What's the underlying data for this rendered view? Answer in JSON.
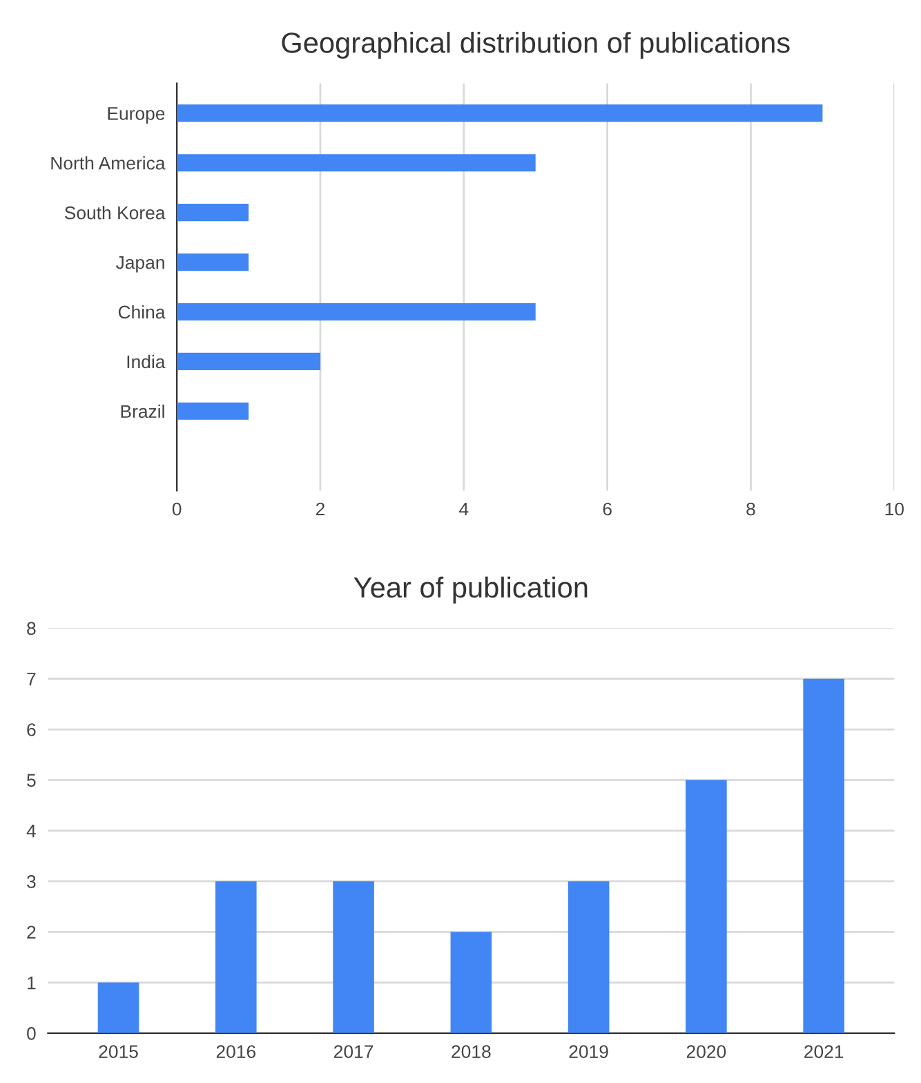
{
  "chart_data": [
    {
      "type": "bar",
      "orientation": "horizontal",
      "title": "Geographical distribution of publications",
      "categories": [
        "Europe",
        "North America",
        "South Korea",
        "Japan",
        "China",
        "India",
        "Brazil"
      ],
      "values": [
        9,
        5,
        1,
        1,
        5,
        2,
        1
      ],
      "color": "#4285f4",
      "xlim": [
        0,
        10
      ],
      "xticks": [
        0,
        2,
        4,
        6,
        8,
        10
      ],
      "grid": "x",
      "legend": false
    },
    {
      "type": "bar",
      "title": "Year of publication",
      "categories": [
        "2015",
        "2016",
        "2017",
        "2018",
        "2019",
        "2020",
        "2021"
      ],
      "values": [
        1,
        3,
        3,
        2,
        3,
        5,
        7
      ],
      "color": "#4285f4",
      "ylim": [
        0,
        8
      ],
      "yticks": [
        0,
        1,
        2,
        3,
        4,
        5,
        6,
        7,
        8
      ],
      "grid": "y",
      "legend": false
    }
  ]
}
